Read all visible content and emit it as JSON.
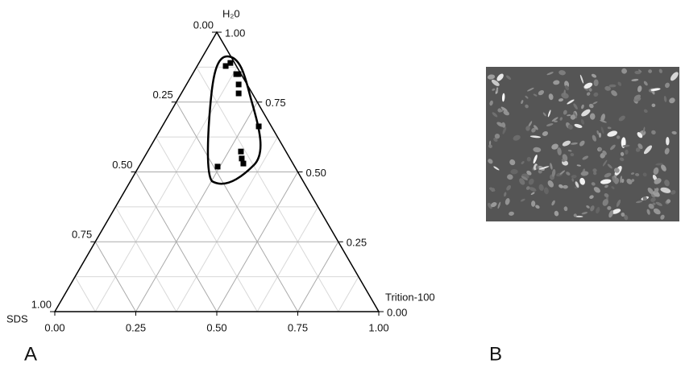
{
  "chart_data": {
    "type": "ternary",
    "top_label": "H₂0",
    "left_label": "SDS",
    "right_label": "Trition-100",
    "left_ticks": [
      {
        "value": 1,
        "label": "1.00"
      },
      {
        "value": 0.75,
        "label": "0.75"
      },
      {
        "value": 0.5,
        "label": "0.50"
      },
      {
        "value": 0.25,
        "label": "0.25"
      },
      {
        "value": 0,
        "label": "0.00"
      }
    ],
    "right_ticks": [
      {
        "value": 1,
        "label": "1.00"
      },
      {
        "value": 0.75,
        "label": "0.75"
      },
      {
        "value": 0.5,
        "label": "0.50"
      },
      {
        "value": 0.25,
        "label": "0.25"
      },
      {
        "value": 0,
        "label": "0.00"
      }
    ],
    "bottom_ticks": [
      {
        "value": 0,
        "label": "0.00"
      },
      {
        "value": 0.25,
        "label": "0.25"
      },
      {
        "value": 0.5,
        "label": "0.50"
      },
      {
        "value": 0.75,
        "label": "0.75"
      },
      {
        "value": 1,
        "label": "1.00"
      }
    ],
    "minor_grid": [
      0.125,
      0.375,
      0.625,
      0.875
    ],
    "point_color": "#000000",
    "h2o_values": [
      0.879,
      0.89,
      0.85,
      0.85,
      0.813,
      0.781,
      0.663,
      0.573,
      0.548,
      0.53,
      0.519
    ],
    "trition_values": [
      0.088,
      0.097,
      0.135,
      0.142,
      0.161,
      0.177,
      0.298,
      0.288,
      0.303,
      0.317,
      0.243
    ]
  },
  "panel_labels": [
    "A",
    "B"
  ]
}
